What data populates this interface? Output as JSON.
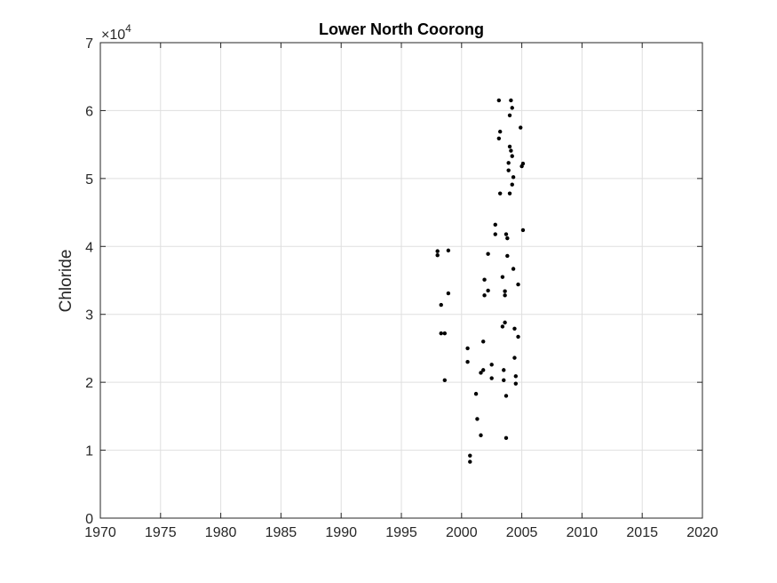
{
  "chart_data": {
    "type": "scatter",
    "title": "Lower North Coorong",
    "xlabel": "",
    "ylabel": "Chloride",
    "xlim": [
      1970,
      2020
    ],
    "ylim": [
      0,
      70000
    ],
    "x_ticks": [
      1970,
      1975,
      1980,
      1985,
      1990,
      1995,
      2000,
      2005,
      2010,
      2015,
      2020
    ],
    "y_ticks": [
      0,
      10000,
      20000,
      30000,
      40000,
      50000,
      60000,
      70000
    ],
    "y_tick_labels": [
      "0",
      "1",
      "2",
      "3",
      "4",
      "5",
      "6",
      "7"
    ],
    "y_exponent_label": {
      "base": "×10",
      "exponent": "4"
    },
    "grid": true,
    "marker_color": "#000000",
    "points": [
      {
        "x": 1998.0,
        "y": 39300
      },
      {
        "x": 1998.0,
        "y": 38700
      },
      {
        "x": 1998.3,
        "y": 31400
      },
      {
        "x": 1998.3,
        "y": 27200
      },
      {
        "x": 1998.6,
        "y": 27200
      },
      {
        "x": 1998.6,
        "y": 20300
      },
      {
        "x": 1998.9,
        "y": 39400
      },
      {
        "x": 1998.9,
        "y": 33100
      },
      {
        "x": 2000.5,
        "y": 25000
      },
      {
        "x": 2000.5,
        "y": 23000
      },
      {
        "x": 2000.7,
        "y": 9200
      },
      {
        "x": 2000.7,
        "y": 8300
      },
      {
        "x": 2001.2,
        "y": 18300
      },
      {
        "x": 2001.3,
        "y": 14600
      },
      {
        "x": 2001.6,
        "y": 12200
      },
      {
        "x": 2001.6,
        "y": 21400
      },
      {
        "x": 2001.8,
        "y": 21800
      },
      {
        "x": 2001.8,
        "y": 26000
      },
      {
        "x": 2001.9,
        "y": 35100
      },
      {
        "x": 2001.9,
        "y": 32800
      },
      {
        "x": 2002.2,
        "y": 38900
      },
      {
        "x": 2002.2,
        "y": 33500
      },
      {
        "x": 2002.5,
        "y": 22600
      },
      {
        "x": 2002.5,
        "y": 20600
      },
      {
        "x": 2002.8,
        "y": 43200
      },
      {
        "x": 2002.8,
        "y": 41800
      },
      {
        "x": 2003.1,
        "y": 61500
      },
      {
        "x": 2003.2,
        "y": 56900
      },
      {
        "x": 2003.1,
        "y": 55900
      },
      {
        "x": 2003.2,
        "y": 47800
      },
      {
        "x": 2003.4,
        "y": 35500
      },
      {
        "x": 2003.4,
        "y": 28200
      },
      {
        "x": 2003.5,
        "y": 21800
      },
      {
        "x": 2003.5,
        "y": 20300
      },
      {
        "x": 2003.6,
        "y": 33400
      },
      {
        "x": 2003.6,
        "y": 32800
      },
      {
        "x": 2003.6,
        "y": 28800
      },
      {
        "x": 2003.7,
        "y": 41800
      },
      {
        "x": 2003.7,
        "y": 18000
      },
      {
        "x": 2003.7,
        "y": 11800
      },
      {
        "x": 2003.8,
        "y": 41200
      },
      {
        "x": 2003.8,
        "y": 38600
      },
      {
        "x": 2003.9,
        "y": 52300
      },
      {
        "x": 2003.9,
        "y": 51200
      },
      {
        "x": 2004.0,
        "y": 59300
      },
      {
        "x": 2004.0,
        "y": 54700
      },
      {
        "x": 2004.0,
        "y": 47800
      },
      {
        "x": 2004.1,
        "y": 61500
      },
      {
        "x": 2004.1,
        "y": 54100
      },
      {
        "x": 2004.2,
        "y": 60400
      },
      {
        "x": 2004.2,
        "y": 53300
      },
      {
        "x": 2004.2,
        "y": 49100
      },
      {
        "x": 2004.3,
        "y": 50200
      },
      {
        "x": 2004.3,
        "y": 36700
      },
      {
        "x": 2004.4,
        "y": 27900
      },
      {
        "x": 2004.4,
        "y": 23600
      },
      {
        "x": 2004.5,
        "y": 20900
      },
      {
        "x": 2004.5,
        "y": 19800
      },
      {
        "x": 2004.7,
        "y": 34400
      },
      {
        "x": 2004.7,
        "y": 26700
      },
      {
        "x": 2004.9,
        "y": 57500
      },
      {
        "x": 2005.0,
        "y": 51800
      },
      {
        "x": 2005.1,
        "y": 52200
      },
      {
        "x": 2005.1,
        "y": 42400
      }
    ]
  }
}
